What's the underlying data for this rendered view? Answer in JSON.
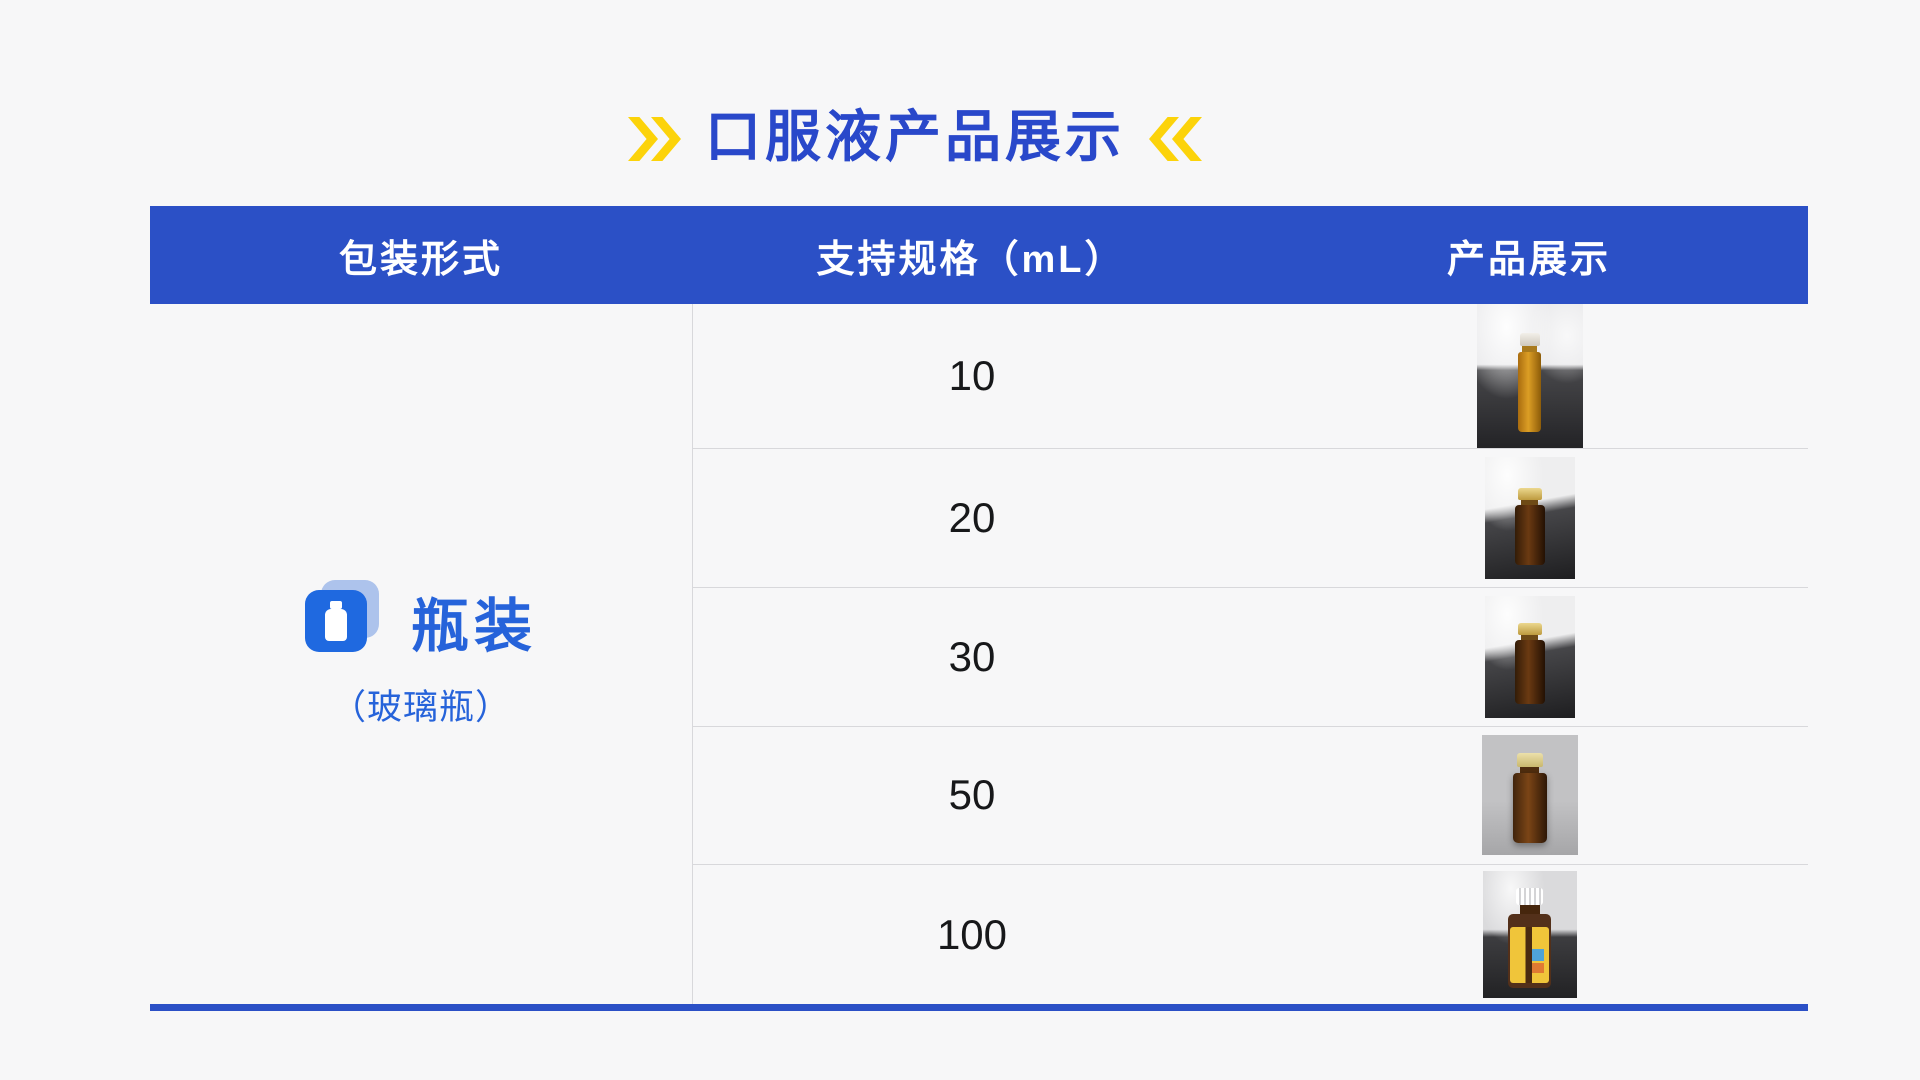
{
  "title": {
    "text": "口服液产品展示",
    "left_decoration": "double-chevron-right",
    "right_decoration": "double-chevron-left",
    "text_color": "#2948ca",
    "accent_yellow": "#fcd30a"
  },
  "table": {
    "header": {
      "bg_color": "#2b50c6",
      "columns": [
        "包装形式",
        "支持规格（mL）",
        "产品展示"
      ]
    },
    "packaging": {
      "icon": "bottle-icon",
      "icon_color": "#1f69e0",
      "label": "瓶装",
      "sub_label": "（玻璃瓶）",
      "label_color": "#2663da"
    },
    "rows": [
      {
        "spec": "10",
        "photo": "slim-amber-bottle-silver-cap"
      },
      {
        "spec": "20",
        "photo": "brown-bottle-gold-cap"
      },
      {
        "spec": "30",
        "photo": "brown-bottle-gold-cap-2"
      },
      {
        "spec": "50",
        "photo": "brown-bottle-pale-gold-cap"
      },
      {
        "spec": "100",
        "photo": "labeled-brown-bottle-white-cap"
      }
    ],
    "bottom_line_color": "#2b50c6"
  }
}
